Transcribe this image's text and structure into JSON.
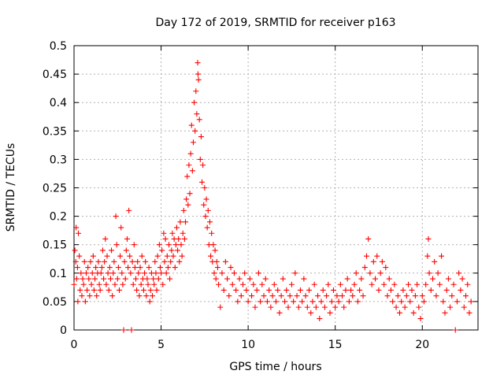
{
  "chart_data": {
    "type": "scatter",
    "title": "Day 172 of 2019, SRMTID for receiver p163",
    "xlabel": "GPS time / hours",
    "ylabel": "SRMTID / TECUs",
    "xlim": [
      0,
      23.2
    ],
    "ylim": [
      0,
      0.5
    ],
    "xticks": [
      0,
      5,
      10,
      15,
      20
    ],
    "xtick_labels": [
      "0",
      "5",
      "10",
      "15",
      "20"
    ],
    "yticks": [
      0,
      0.05,
      0.1,
      0.15,
      0.2,
      0.25,
      0.3,
      0.35,
      0.4,
      0.45,
      0.5
    ],
    "ytick_labels": [
      "0",
      "0.05",
      "0.1",
      "0.15",
      "0.2",
      "0.25",
      "0.3",
      "0.35",
      "0.4",
      "0.45",
      "0.5"
    ],
    "grid": true,
    "marker": "plus",
    "color": "#ff0000",
    "series": [
      {
        "name": "p163",
        "points": [
          [
            0.0,
            0.08
          ],
          [
            0.05,
            0.14
          ],
          [
            0.1,
            0.12
          ],
          [
            0.12,
            0.18
          ],
          [
            0.15,
            0.09
          ],
          [
            0.2,
            0.11
          ],
          [
            0.22,
            0.05
          ],
          [
            0.25,
            0.17
          ],
          [
            0.3,
            0.13
          ],
          [
            0.35,
            0.07
          ],
          [
            0.4,
            0.1
          ],
          [
            0.45,
            0.06
          ],
          [
            0.5,
            0.09
          ],
          [
            0.55,
            0.08
          ],
          [
            0.6,
            0.12
          ],
          [
            0.65,
            0.05
          ],
          [
            0.7,
            0.1
          ],
          [
            0.75,
            0.07
          ],
          [
            0.8,
            0.11
          ],
          [
            0.85,
            0.09
          ],
          [
            0.9,
            0.06
          ],
          [
            0.95,
            0.12
          ],
          [
            1.0,
            0.08
          ],
          [
            1.05,
            0.1
          ],
          [
            1.1,
            0.13
          ],
          [
            1.15,
            0.07
          ],
          [
            1.2,
            0.09
          ],
          [
            1.25,
            0.11
          ],
          [
            1.3,
            0.06
          ],
          [
            1.35,
            0.1
          ],
          [
            1.4,
            0.12
          ],
          [
            1.45,
            0.08
          ],
          [
            1.5,
            0.07
          ],
          [
            1.55,
            0.1
          ],
          [
            1.6,
            0.11
          ],
          [
            1.65,
            0.14
          ],
          [
            1.7,
            0.09
          ],
          [
            1.75,
            0.12
          ],
          [
            1.8,
            0.16
          ],
          [
            1.85,
            0.08
          ],
          [
            1.9,
            0.13
          ],
          [
            1.95,
            0.1
          ],
          [
            2.0,
            0.07
          ],
          [
            2.05,
            0.11
          ],
          [
            2.1,
            0.09
          ],
          [
            2.15,
            0.14
          ],
          [
            2.2,
            0.06
          ],
          [
            2.25,
            0.1
          ],
          [
            2.3,
            0.12
          ],
          [
            2.35,
            0.08
          ],
          [
            2.4,
            0.2
          ],
          [
            2.45,
            0.15
          ],
          [
            2.5,
            0.09
          ],
          [
            2.55,
            0.11
          ],
          [
            2.6,
            0.07
          ],
          [
            2.65,
            0.13
          ],
          [
            2.7,
            0.18
          ],
          [
            2.75,
            0.1
          ],
          [
            2.8,
            0.08
          ],
          [
            2.85,
            0.0
          ],
          [
            2.9,
            0.12
          ],
          [
            2.95,
            0.09
          ],
          [
            3.0,
            0.14
          ],
          [
            3.05,
            0.16
          ],
          [
            3.1,
            0.11
          ],
          [
            3.15,
            0.21
          ],
          [
            3.2,
            0.13
          ],
          [
            3.25,
            0.1
          ],
          [
            3.3,
            0.0
          ],
          [
            3.35,
            0.12
          ],
          [
            3.4,
            0.08
          ],
          [
            3.45,
            0.15
          ],
          [
            3.5,
            0.11
          ],
          [
            3.55,
            0.09
          ],
          [
            3.6,
            0.07
          ],
          [
            3.65,
            0.12
          ],
          [
            3.7,
            0.1
          ],
          [
            3.75,
            0.06
          ],
          [
            3.8,
            0.11
          ],
          [
            3.85,
            0.08
          ],
          [
            3.9,
            0.13
          ],
          [
            3.95,
            0.09
          ],
          [
            4.0,
            0.07
          ],
          [
            4.05,
            0.1
          ],
          [
            4.1,
            0.12
          ],
          [
            4.15,
            0.06
          ],
          [
            4.2,
            0.09
          ],
          [
            4.25,
            0.08
          ],
          [
            4.3,
            0.11
          ],
          [
            4.35,
            0.05
          ],
          [
            4.4,
            0.07
          ],
          [
            4.45,
            0.1
          ],
          [
            4.5,
            0.06
          ],
          [
            4.55,
            0.09
          ],
          [
            4.6,
            0.08
          ],
          [
            4.65,
            0.12
          ],
          [
            4.7,
            0.1
          ],
          [
            4.75,
            0.07
          ],
          [
            4.8,
            0.13
          ],
          [
            4.85,
            0.09
          ],
          [
            4.9,
            0.15
          ],
          [
            4.95,
            0.11
          ],
          [
            5.0,
            0.1
          ],
          [
            5.05,
            0.14
          ],
          [
            5.1,
            0.08
          ],
          [
            5.15,
            0.17
          ],
          [
            5.2,
            0.12
          ],
          [
            5.25,
            0.16
          ],
          [
            5.3,
            0.1
          ],
          [
            5.35,
            0.13
          ],
          [
            5.4,
            0.11
          ],
          [
            5.45,
            0.15
          ],
          [
            5.5,
            0.09
          ],
          [
            5.55,
            0.12
          ],
          [
            5.6,
            0.14
          ],
          [
            5.65,
            0.17
          ],
          [
            5.7,
            0.13
          ],
          [
            5.75,
            0.16
          ],
          [
            5.8,
            0.11
          ],
          [
            5.85,
            0.15
          ],
          [
            5.9,
            0.18
          ],
          [
            5.95,
            0.14
          ],
          [
            6.0,
            0.16
          ],
          [
            6.05,
            0.12
          ],
          [
            6.1,
            0.19
          ],
          [
            6.15,
            0.15
          ],
          [
            6.2,
            0.13
          ],
          [
            6.25,
            0.17
          ],
          [
            6.3,
            0.21
          ],
          [
            6.35,
            0.16
          ],
          [
            6.4,
            0.19
          ],
          [
            6.45,
            0.23
          ],
          [
            6.5,
            0.27
          ],
          [
            6.55,
            0.22
          ],
          [
            6.6,
            0.29
          ],
          [
            6.65,
            0.24
          ],
          [
            6.7,
            0.31
          ],
          [
            6.75,
            0.36
          ],
          [
            6.8,
            0.28
          ],
          [
            6.85,
            0.33
          ],
          [
            6.9,
            0.4
          ],
          [
            6.95,
            0.35
          ],
          [
            7.0,
            0.42
          ],
          [
            7.05,
            0.38
          ],
          [
            7.1,
            0.47
          ],
          [
            7.12,
            0.45
          ],
          [
            7.15,
            0.44
          ],
          [
            7.2,
            0.37
          ],
          [
            7.25,
            0.3
          ],
          [
            7.3,
            0.34
          ],
          [
            7.35,
            0.26
          ],
          [
            7.4,
            0.29
          ],
          [
            7.45,
            0.22
          ],
          [
            7.5,
            0.25
          ],
          [
            7.55,
            0.2
          ],
          [
            7.6,
            0.23
          ],
          [
            7.65,
            0.18
          ],
          [
            7.7,
            0.21
          ],
          [
            7.75,
            0.15
          ],
          [
            7.8,
            0.19
          ],
          [
            7.85,
            0.13
          ],
          [
            7.9,
            0.17
          ],
          [
            7.95,
            0.12
          ],
          [
            8.0,
            0.15
          ],
          [
            8.05,
            0.1
          ],
          [
            8.1,
            0.14
          ],
          [
            8.15,
            0.09
          ],
          [
            8.2,
            0.12
          ],
          [
            8.25,
            0.11
          ],
          [
            8.3,
            0.08
          ],
          [
            8.4,
            0.04
          ],
          [
            8.5,
            0.1
          ],
          [
            8.6,
            0.07
          ],
          [
            8.7,
            0.12
          ],
          [
            8.8,
            0.09
          ],
          [
            8.9,
            0.06
          ],
          [
            9.0,
            0.11
          ],
          [
            9.1,
            0.08
          ],
          [
            9.2,
            0.1
          ],
          [
            9.3,
            0.07
          ],
          [
            9.4,
            0.05
          ],
          [
            9.5,
            0.09
          ],
          [
            9.6,
            0.06
          ],
          [
            9.7,
            0.08
          ],
          [
            9.8,
            0.1
          ],
          [
            9.9,
            0.07
          ],
          [
            10.0,
            0.05
          ],
          [
            10.1,
            0.09
          ],
          [
            10.2,
            0.06
          ],
          [
            10.3,
            0.08
          ],
          [
            10.4,
            0.04
          ],
          [
            10.5,
            0.07
          ],
          [
            10.6,
            0.1
          ],
          [
            10.7,
            0.05
          ],
          [
            10.8,
            0.08
          ],
          [
            10.9,
            0.06
          ],
          [
            11.0,
            0.09
          ],
          [
            11.1,
            0.05
          ],
          [
            11.2,
            0.07
          ],
          [
            11.3,
            0.04
          ],
          [
            11.4,
            0.06
          ],
          [
            11.5,
            0.08
          ],
          [
            11.6,
            0.05
          ],
          [
            11.7,
            0.07
          ],
          [
            11.8,
            0.03
          ],
          [
            11.9,
            0.06
          ],
          [
            12.0,
            0.09
          ],
          [
            12.1,
            0.05
          ],
          [
            12.2,
            0.07
          ],
          [
            12.3,
            0.04
          ],
          [
            12.4,
            0.06
          ],
          [
            12.5,
            0.08
          ],
          [
            12.6,
            0.05
          ],
          [
            12.7,
            0.1
          ],
          [
            12.8,
            0.06
          ],
          [
            12.9,
            0.04
          ],
          [
            13.0,
            0.07
          ],
          [
            13.1,
            0.05
          ],
          [
            13.2,
            0.09
          ],
          [
            13.3,
            0.06
          ],
          [
            13.4,
            0.04
          ],
          [
            13.5,
            0.07
          ],
          [
            13.6,
            0.03
          ],
          [
            13.7,
            0.05
          ],
          [
            13.8,
            0.08
          ],
          [
            13.9,
            0.04
          ],
          [
            14.0,
            0.06
          ],
          [
            14.1,
            0.02
          ],
          [
            14.2,
            0.05
          ],
          [
            14.3,
            0.07
          ],
          [
            14.4,
            0.04
          ],
          [
            14.5,
            0.06
          ],
          [
            14.6,
            0.08
          ],
          [
            14.7,
            0.03
          ],
          [
            14.8,
            0.05
          ],
          [
            14.9,
            0.07
          ],
          [
            15.0,
            0.04
          ],
          [
            15.1,
            0.06
          ],
          [
            15.2,
            0.05
          ],
          [
            15.3,
            0.08
          ],
          [
            15.4,
            0.06
          ],
          [
            15.5,
            0.04
          ],
          [
            15.6,
            0.07
          ],
          [
            15.7,
            0.09
          ],
          [
            15.8,
            0.05
          ],
          [
            15.9,
            0.07
          ],
          [
            16.0,
            0.06
          ],
          [
            16.1,
            0.08
          ],
          [
            16.2,
            0.1
          ],
          [
            16.3,
            0.05
          ],
          [
            16.4,
            0.07
          ],
          [
            16.5,
            0.09
          ],
          [
            16.6,
            0.06
          ],
          [
            16.7,
            0.11
          ],
          [
            16.8,
            0.13
          ],
          [
            16.9,
            0.16
          ],
          [
            17.0,
            0.1
          ],
          [
            17.1,
            0.08
          ],
          [
            17.2,
            0.12
          ],
          [
            17.3,
            0.09
          ],
          [
            17.4,
            0.13
          ],
          [
            17.5,
            0.07
          ],
          [
            17.6,
            0.1
          ],
          [
            17.7,
            0.12
          ],
          [
            17.8,
            0.08
          ],
          [
            17.9,
            0.11
          ],
          [
            18.0,
            0.06
          ],
          [
            18.1,
            0.09
          ],
          [
            18.2,
            0.07
          ],
          [
            18.3,
            0.05
          ],
          [
            18.4,
            0.08
          ],
          [
            18.5,
            0.04
          ],
          [
            18.6,
            0.06
          ],
          [
            18.7,
            0.03
          ],
          [
            18.8,
            0.05
          ],
          [
            18.9,
            0.07
          ],
          [
            19.0,
            0.04
          ],
          [
            19.1,
            0.06
          ],
          [
            19.2,
            0.08
          ],
          [
            19.3,
            0.05
          ],
          [
            19.4,
            0.07
          ],
          [
            19.5,
            0.03
          ],
          [
            19.6,
            0.06
          ],
          [
            19.7,
            0.08
          ],
          [
            19.8,
            0.04
          ],
          [
            19.9,
            0.02
          ],
          [
            20.0,
            0.06
          ],
          [
            20.1,
            0.05
          ],
          [
            20.2,
            0.08
          ],
          [
            20.3,
            0.13
          ],
          [
            20.35,
            0.16
          ],
          [
            20.4,
            0.1
          ],
          [
            20.5,
            0.07
          ],
          [
            20.6,
            0.09
          ],
          [
            20.7,
            0.12
          ],
          [
            20.8,
            0.06
          ],
          [
            20.9,
            0.1
          ],
          [
            21.0,
            0.08
          ],
          [
            21.1,
            0.13
          ],
          [
            21.2,
            0.05
          ],
          [
            21.3,
            0.03
          ],
          [
            21.4,
            0.07
          ],
          [
            21.5,
            0.09
          ],
          [
            21.6,
            0.04
          ],
          [
            21.7,
            0.06
          ],
          [
            21.8,
            0.08
          ],
          [
            21.9,
            0.0
          ],
          [
            22.0,
            0.05
          ],
          [
            22.1,
            0.1
          ],
          [
            22.2,
            0.07
          ],
          [
            22.3,
            0.09
          ],
          [
            22.4,
            0.04
          ],
          [
            22.5,
            0.06
          ],
          [
            22.6,
            0.08
          ],
          [
            22.7,
            0.03
          ],
          [
            22.8,
            0.05
          ]
        ]
      }
    ]
  }
}
